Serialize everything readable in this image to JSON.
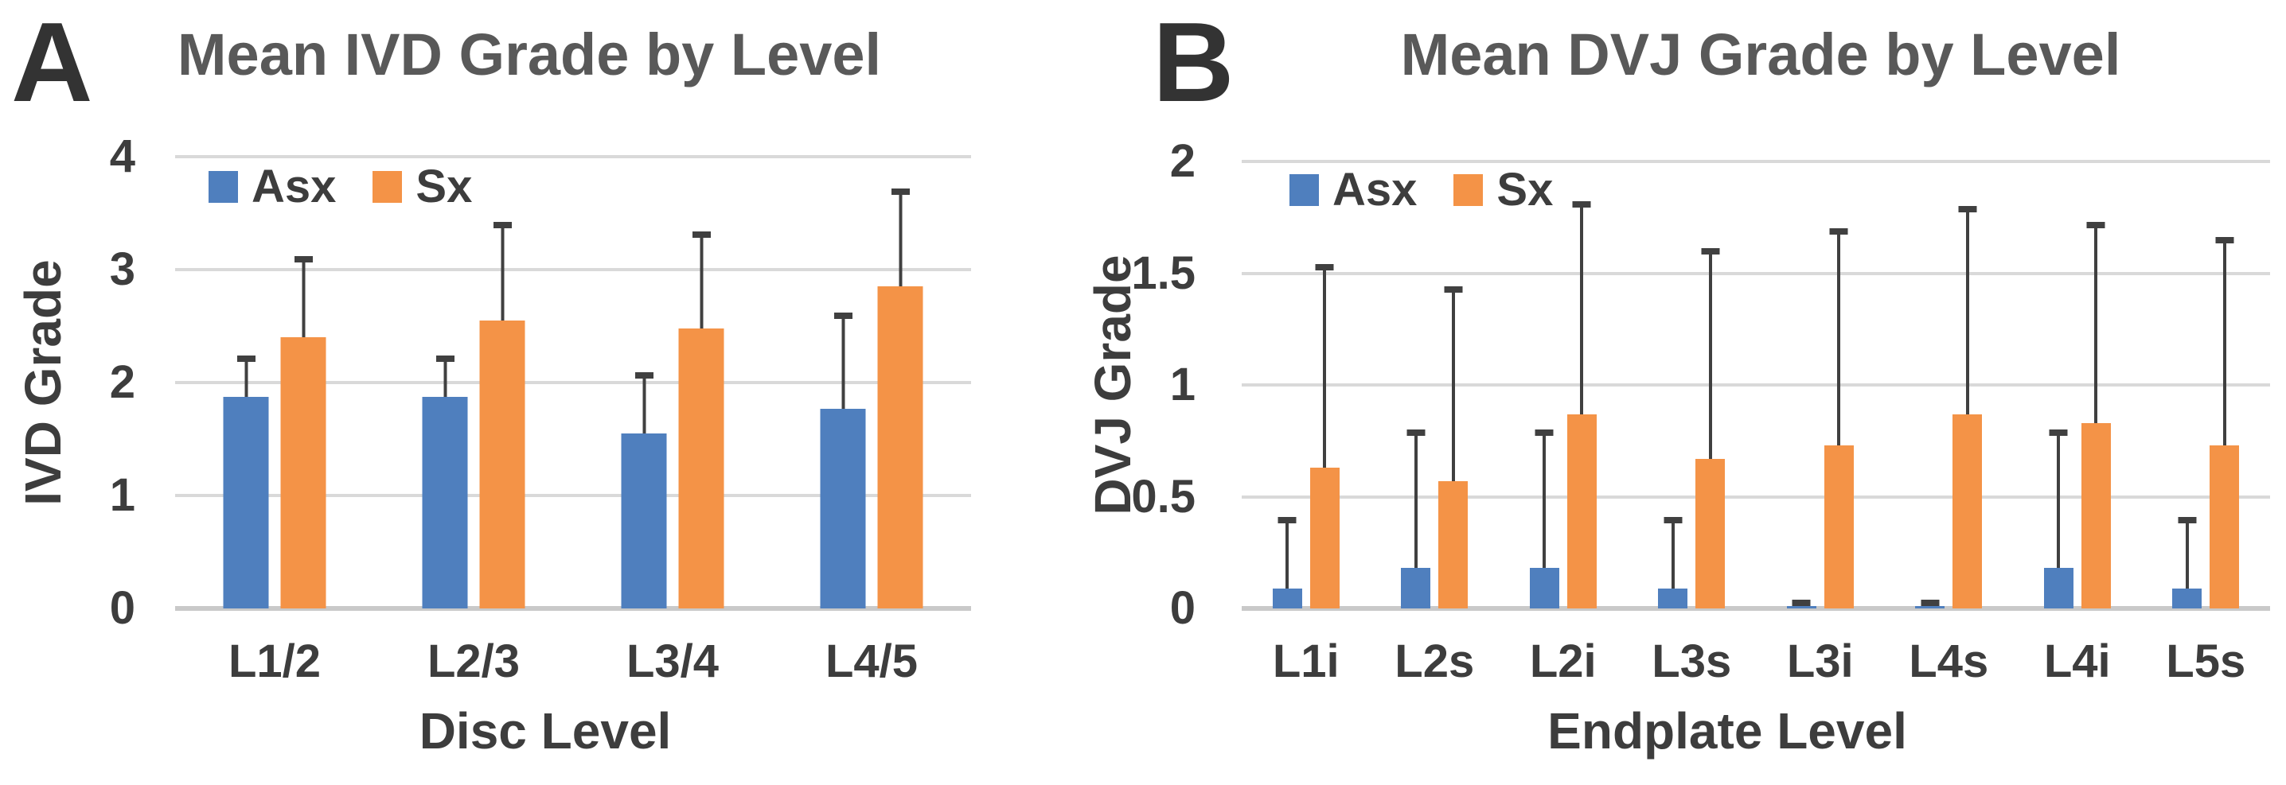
{
  "figure": {
    "background": "#ffffff",
    "asx_color": "#4F7FBE",
    "sx_color": "#F49347",
    "error_bar_color": "#404040",
    "gridline_color": "#d9d9d9"
  },
  "chart_data": [
    {
      "type": "bar",
      "panel_letter": "A",
      "title": "Mean IVD Grade by Level",
      "xlabel": "Disc Level",
      "ylabel": "IVD Grade",
      "ylim": [
        0,
        4
      ],
      "yticks": [
        "0",
        "1",
        "2",
        "3",
        "4"
      ],
      "grid": true,
      "legend_position": "top-left-inside",
      "legend_labels": [
        "Asx",
        "Sx"
      ],
      "categories": [
        "L1/2",
        "L2/3",
        "L3/4",
        "L4/5"
      ],
      "series": [
        {
          "name": "Asx",
          "color": "#4F7FBE",
          "values": [
            1.87,
            1.87,
            1.55,
            1.77
          ],
          "error_top": [
            2.22,
            2.22,
            2.07,
            2.6
          ]
        },
        {
          "name": "Sx",
          "color": "#F49347",
          "values": [
            2.4,
            2.55,
            2.48,
            2.85
          ],
          "error_top": [
            3.1,
            3.4,
            3.32,
            3.7
          ]
        }
      ]
    },
    {
      "type": "bar",
      "panel_letter": "B",
      "title": "Mean DVJ Grade by Level",
      "xlabel": "Endplate Level",
      "ylabel": "DVJ Grade",
      "ylim": [
        0,
        2
      ],
      "yticks": [
        "0",
        "0.5",
        "1",
        "1.5",
        "2"
      ],
      "grid": true,
      "legend_position": "top-left-inside",
      "legend_labels": [
        "Asx",
        "Sx"
      ],
      "categories": [
        "L1i",
        "L2s",
        "L2i",
        "L3s",
        "L3i",
        "L4s",
        "L4i",
        "L5s"
      ],
      "series": [
        {
          "name": "Asx",
          "color": "#4F7FBE",
          "values": [
            0.09,
            0.18,
            0.18,
            0.09,
            0.01,
            0.01,
            0.18,
            0.09
          ],
          "error_top": [
            0.4,
            0.79,
            0.79,
            0.4,
            0.03,
            0.03,
            0.79,
            0.4
          ]
        },
        {
          "name": "Sx",
          "color": "#F49347",
          "values": [
            0.63,
            0.57,
            0.87,
            0.67,
            0.73,
            0.87,
            0.83,
            0.73
          ],
          "error_top": [
            1.53,
            1.43,
            1.81,
            1.6,
            1.69,
            1.79,
            1.72,
            1.65
          ]
        }
      ]
    }
  ]
}
